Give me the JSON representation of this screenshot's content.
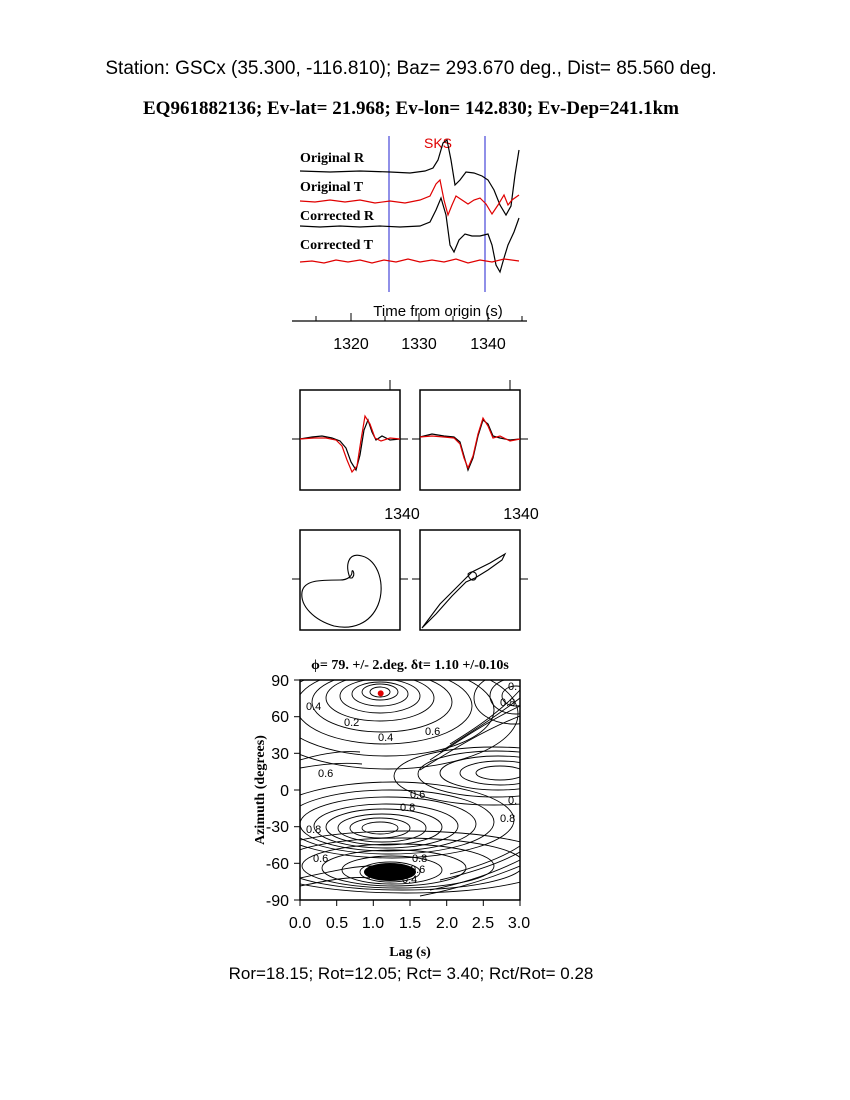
{
  "header": {
    "station_line": "Station: GSCx (35.300, -116.810); Baz=  293.670 deg., Dist=   85.560 deg.",
    "event_line": "EQ961882136; Ev-lat=  21.968; Ev-lon= 142.830; Ev-Dep=241.1km"
  },
  "footer": {
    "ratios_line": "Ror=18.15; Rot=12.05; Rct= 3.40; Rct/Rot= 0.28"
  },
  "colors": {
    "trace_black": "#000000",
    "trace_red": "#e00000",
    "window_blue": "#2020d0",
    "phase_red": "#e00000"
  },
  "chart_data": [
    {
      "type": "line",
      "panel": "seismograms",
      "phase_label": "SKS",
      "trace_labels": [
        "Original R",
        "Original T",
        "Corrected R",
        "Corrected T"
      ],
      "xlabel": "Time from origin (s)",
      "x_ticks": [
        "1320",
        "1330",
        "1340"
      ],
      "xlim": [
        1312,
        1345
      ],
      "window_start": 1326,
      "window_end": 1340
    },
    {
      "type": "line",
      "panel": "waveform-overlays",
      "tick_labels": [
        "1340",
        "1340"
      ]
    },
    {
      "type": "line",
      "panel": "particle-motion",
      "plots": [
        "original",
        "corrected"
      ]
    },
    {
      "type": "heatmap",
      "panel": "energy-grid",
      "title": "ϕ= 79. +/- 2.deg.  δt= 1.10 +/-0.10s",
      "xlabel": "Lag (s)",
      "ylabel": "Azimuth (degrees)",
      "x_ticks": [
        "0.0",
        "0.5",
        "1.0",
        "1.5",
        "2.0",
        "2.5",
        "3.0"
      ],
      "y_ticks": [
        "90",
        "60",
        "30",
        "0",
        "-30",
        "-60",
        "-90"
      ],
      "xlim": [
        0,
        3
      ],
      "ylim": [
        -90,
        90
      ],
      "best_fit": {
        "lag": 1.1,
        "azimuth": 79
      },
      "contour_labels": [
        "0.4",
        "0.2",
        "0.4",
        "0.6",
        "0.",
        "0.8",
        "0.6",
        "0.6",
        "0.8",
        "0.",
        "0.8",
        "0.8",
        "0.6",
        "0.8",
        "0.6",
        "0.4"
      ]
    }
  ]
}
